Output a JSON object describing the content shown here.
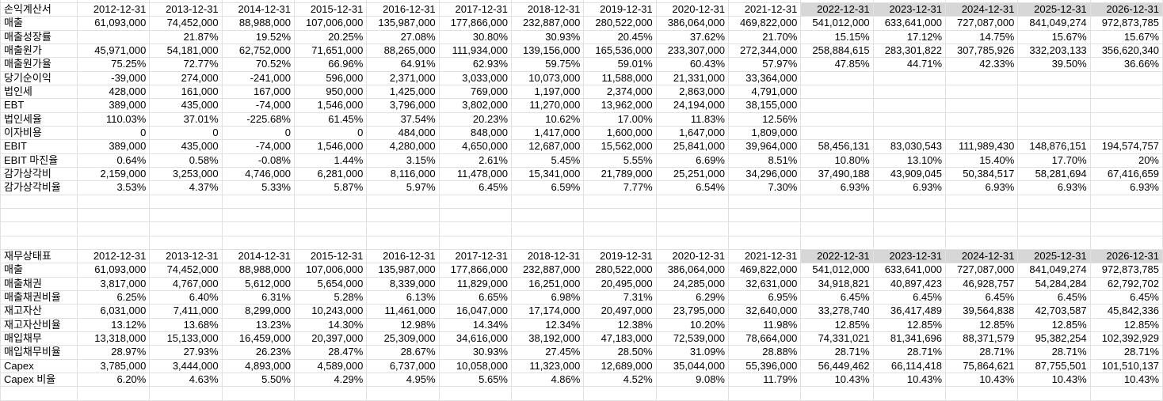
{
  "grid": {
    "gridline_color": "#e1e1e1",
    "forecast_header_bg": "#d7d7d7",
    "background": "#ffffff",
    "text_color": "#000000",
    "forecast_start_index": 10
  },
  "columns": [
    "2012-12-31",
    "2013-12-31",
    "2014-12-31",
    "2015-12-31",
    "2016-12-31",
    "2017-12-31",
    "2018-12-31",
    "2019-12-31",
    "2020-12-31",
    "2021-12-31",
    "2022-12-31",
    "2023-12-31",
    "2024-12-31",
    "2025-12-31",
    "2026-12-31"
  ],
  "income_statement": {
    "title": "손익계산서",
    "rows": [
      {
        "label": "매출",
        "values": [
          "61,093,000",
          "74,452,000",
          "88,988,000",
          "107,006,000",
          "135,987,000",
          "177,866,000",
          "232,887,000",
          "280,522,000",
          "386,064,000",
          "469,822,000",
          "541,012,000",
          "633,641,000",
          "727,087,000",
          "841,049,274",
          "972,873,785"
        ]
      },
      {
        "label": "매출성장률",
        "values": [
          "",
          "21.87%",
          "19.52%",
          "20.25%",
          "27.08%",
          "30.80%",
          "30.93%",
          "20.45%",
          "37.62%",
          "21.70%",
          "15.15%",
          "17.12%",
          "14.75%",
          "15.67%",
          "15.67%"
        ]
      },
      {
        "label": "매출원가",
        "values": [
          "45,971,000",
          "54,181,000",
          "62,752,000",
          "71,651,000",
          "88,265,000",
          "111,934,000",
          "139,156,000",
          "165,536,000",
          "233,307,000",
          "272,344,000",
          "258,884,615",
          "283,301,822",
          "307,785,926",
          "332,203,133",
          "356,620,340"
        ]
      },
      {
        "label": "매출원가율",
        "values": [
          "75.25%",
          "72.77%",
          "70.52%",
          "66.96%",
          "64.91%",
          "62.93%",
          "59.75%",
          "59.01%",
          "60.43%",
          "57.97%",
          "47.85%",
          "44.71%",
          "42.33%",
          "39.50%",
          "36.66%"
        ]
      },
      {
        "label": "당기순이익",
        "values": [
          "-39,000",
          "274,000",
          "-241,000",
          "596,000",
          "2,371,000",
          "3,033,000",
          "10,073,000",
          "11,588,000",
          "21,331,000",
          "33,364,000",
          "",
          "",
          "",
          "",
          ""
        ]
      },
      {
        "label": "법인세",
        "values": [
          "428,000",
          "161,000",
          "167,000",
          "950,000",
          "1,425,000",
          "769,000",
          "1,197,000",
          "2,374,000",
          "2,863,000",
          "4,791,000",
          "",
          "",
          "",
          "",
          ""
        ]
      },
      {
        "label": "EBT",
        "values": [
          "389,000",
          "435,000",
          "-74,000",
          "1,546,000",
          "3,796,000",
          "3,802,000",
          "11,270,000",
          "13,962,000",
          "24,194,000",
          "38,155,000",
          "",
          "",
          "",
          "",
          ""
        ]
      },
      {
        "label": "법인세율",
        "values": [
          "110.03%",
          "37.01%",
          "-225.68%",
          "61.45%",
          "37.54%",
          "20.23%",
          "10.62%",
          "17.00%",
          "11.83%",
          "12.56%",
          "",
          "",
          "",
          "",
          ""
        ]
      },
      {
        "label": "이자비용",
        "values": [
          "0",
          "0",
          "0",
          "0",
          "484,000",
          "848,000",
          "1,417,000",
          "1,600,000",
          "1,647,000",
          "1,809,000",
          "",
          "",
          "",
          "",
          ""
        ]
      },
      {
        "label": "EBIT",
        "values": [
          "389,000",
          "435,000",
          "-74,000",
          "1,546,000",
          "4,280,000",
          "4,650,000",
          "12,687,000",
          "15,562,000",
          "25,841,000",
          "39,964,000",
          "58,456,131",
          "83,030,543",
          "111,989,430",
          "148,876,151",
          "194,574,757"
        ]
      },
      {
        "label": "EBIT 마진율",
        "values": [
          "0.64%",
          "0.58%",
          "-0.08%",
          "1.44%",
          "3.15%",
          "2.61%",
          "5.45%",
          "5.55%",
          "6.69%",
          "8.51%",
          "10.80%",
          "13.10%",
          "15.40%",
          "17.70%",
          "20%"
        ]
      },
      {
        "label": "감가상각비",
        "values": [
          "2,159,000",
          "3,253,000",
          "4,746,000",
          "6,281,000",
          "8,116,000",
          "11,478,000",
          "15,341,000",
          "21,789,000",
          "25,251,000",
          "34,296,000",
          "37,490,188",
          "43,909,045",
          "50,384,517",
          "58,281,694",
          "67,416,659"
        ]
      },
      {
        "label": "감가상각비율",
        "values": [
          "3.53%",
          "4.37%",
          "5.33%",
          "5.87%",
          "5.97%",
          "6.45%",
          "6.59%",
          "7.77%",
          "6.54%",
          "7.30%",
          "6.93%",
          "6.93%",
          "6.93%",
          "6.93%",
          "6.93%"
        ]
      }
    ]
  },
  "balance_sheet": {
    "title": "재무상태표",
    "rows": [
      {
        "label": "매출",
        "values": [
          "61,093,000",
          "74,452,000",
          "88,988,000",
          "107,006,000",
          "135,987,000",
          "177,866,000",
          "232,887,000",
          "280,522,000",
          "386,064,000",
          "469,822,000",
          "541,012,000",
          "633,641,000",
          "727,087,000",
          "841,049,274",
          "972,873,785"
        ]
      },
      {
        "label": "매출채권",
        "values": [
          "3,817,000",
          "4,767,000",
          "5,612,000",
          "5,654,000",
          "8,339,000",
          "11,829,000",
          "16,251,000",
          "20,495,000",
          "24,285,000",
          "32,631,000",
          "34,918,821",
          "40,897,423",
          "46,928,757",
          "54,284,284",
          "62,792,702"
        ]
      },
      {
        "label": "매출채권비율",
        "values": [
          "6.25%",
          "6.40%",
          "6.31%",
          "5.28%",
          "6.13%",
          "6.65%",
          "6.98%",
          "7.31%",
          "6.29%",
          "6.95%",
          "6.45%",
          "6.45%",
          "6.45%",
          "6.45%",
          "6.45%"
        ]
      },
      {
        "label": "재고자산",
        "values": [
          "6,031,000",
          "7,411,000",
          "8,299,000",
          "10,243,000",
          "11,461,000",
          "16,047,000",
          "17,174,000",
          "20,497,000",
          "23,795,000",
          "32,640,000",
          "33,278,740",
          "36,417,489",
          "39,564,838",
          "42,703,587",
          "45,842,336"
        ]
      },
      {
        "label": "재고자산비율",
        "values": [
          "13.12%",
          "13.68%",
          "13.23%",
          "14.30%",
          "12.98%",
          "14.34%",
          "12.34%",
          "12.38%",
          "10.20%",
          "11.98%",
          "12.85%",
          "12.85%",
          "12.85%",
          "12.85%",
          "12.85%"
        ]
      },
      {
        "label": "매입채무",
        "values": [
          "13,318,000",
          "15,133,000",
          "16,459,000",
          "20,397,000",
          "25,309,000",
          "34,616,000",
          "38,192,000",
          "47,183,000",
          "72,539,000",
          "78,664,000",
          "74,331,021",
          "81,341,696",
          "88,371,579",
          "95,382,254",
          "102,392,929"
        ]
      },
      {
        "label": "매입채무비율",
        "values": [
          "28.97%",
          "27.93%",
          "26.23%",
          "28.47%",
          "28.67%",
          "30.93%",
          "27.45%",
          "28.50%",
          "31.09%",
          "28.88%",
          "28.71%",
          "28.71%",
          "28.71%",
          "28.71%",
          "28.71%"
        ]
      },
      {
        "label": "Capex",
        "values": [
          "3,785,000",
          "3,444,000",
          "4,893,000",
          "4,589,000",
          "6,737,000",
          "10,058,000",
          "11,323,000",
          "12,689,000",
          "35,044,000",
          "55,396,000",
          "56,449,462",
          "66,114,418",
          "75,864,621",
          "87,755,501",
          "101,510,137"
        ]
      },
      {
        "label": "Capex 비율",
        "values": [
          "6.20%",
          "4.63%",
          "5.50%",
          "4.29%",
          "4.95%",
          "5.65%",
          "4.86%",
          "4.52%",
          "9.08%",
          "11.79%",
          "10.43%",
          "10.43%",
          "10.43%",
          "10.43%",
          "10.43%"
        ]
      }
    ]
  }
}
